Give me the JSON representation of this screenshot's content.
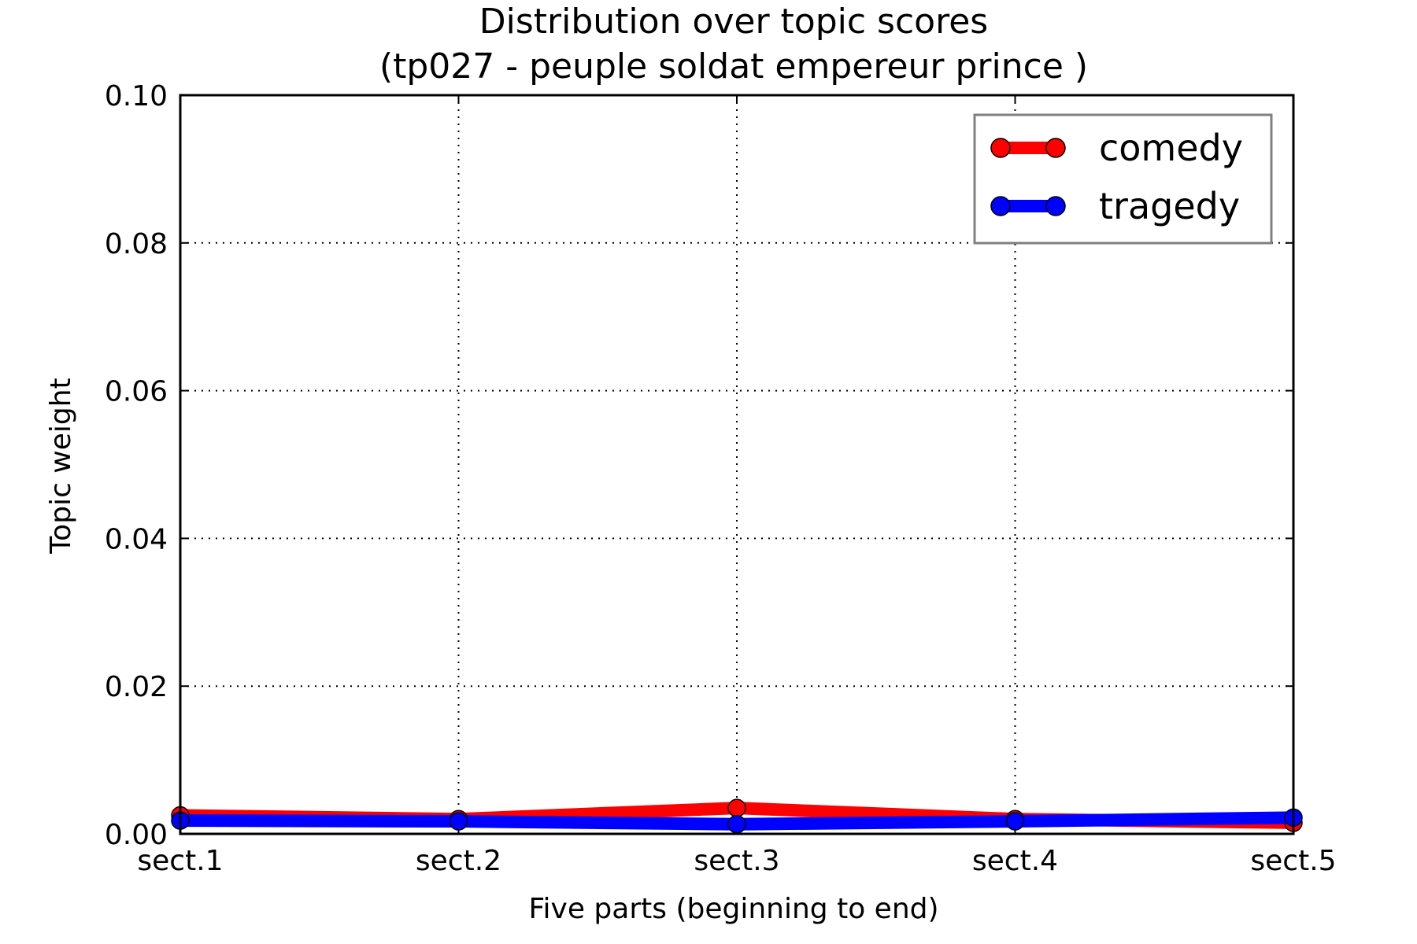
{
  "chart_data": {
    "type": "line",
    "title": "Distribution over topic scores",
    "subtitle": "(tp027 - peuple soldat empereur prince )",
    "xlabel": "Five parts (beginning to end)",
    "ylabel": "Topic weight",
    "categories": [
      "sect.1",
      "sect.2",
      "sect.3",
      "sect.4",
      "sect.5"
    ],
    "ylim": [
      0,
      0.1
    ],
    "yticks": [
      "0.00",
      "0.02",
      "0.04",
      "0.06",
      "0.08",
      "0.10"
    ],
    "grid": true,
    "legend_position": "top-right",
    "series": [
      {
        "name": "comedy",
        "color": "#ff0000",
        "values": [
          0.0025,
          0.002,
          0.0035,
          0.002,
          0.0015
        ]
      },
      {
        "name": "tragedy",
        "color": "#0000ff",
        "values": [
          0.0018,
          0.0017,
          0.0013,
          0.0017,
          0.0022
        ]
      }
    ]
  }
}
